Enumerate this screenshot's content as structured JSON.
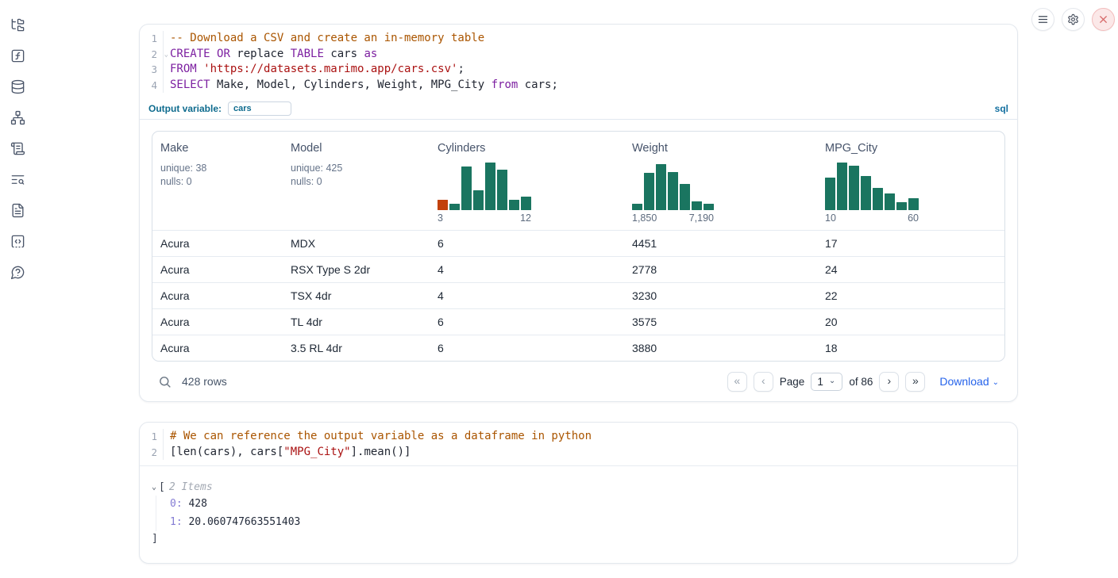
{
  "sidebar": {
    "icons": [
      {
        "name": "file-tree-icon"
      },
      {
        "name": "function-icon"
      },
      {
        "name": "database-icon"
      },
      {
        "name": "dependency-graph-icon"
      },
      {
        "name": "logs-icon"
      },
      {
        "name": "list-search-icon"
      },
      {
        "name": "documentation-icon"
      },
      {
        "name": "snippets-icon"
      },
      {
        "name": "help-icon"
      }
    ]
  },
  "topbar": {
    "buttons": [
      "menu-icon",
      "gear-icon",
      "close-icon"
    ]
  },
  "sql_cell": {
    "lines": [
      {
        "num": "1",
        "fold": false,
        "tokens": [
          {
            "t": "com",
            "v": "-- Download a CSV and create an in-memory table"
          }
        ]
      },
      {
        "num": "2",
        "fold": true,
        "tokens": [
          {
            "t": "kw",
            "v": "CREATE"
          },
          {
            "t": "pl",
            "v": " "
          },
          {
            "t": "kw",
            "v": "OR"
          },
          {
            "t": "pl",
            "v": " replace "
          },
          {
            "t": "kw",
            "v": "TABLE"
          },
          {
            "t": "pl",
            "v": " cars "
          },
          {
            "t": "kw",
            "v": "as"
          }
        ]
      },
      {
        "num": "3",
        "fold": false,
        "tokens": [
          {
            "t": "kw",
            "v": "FROM"
          },
          {
            "t": "pl",
            "v": " "
          },
          {
            "t": "str",
            "v": "'https://datasets.marimo.app/cars.csv'"
          },
          {
            "t": "pl",
            "v": ";"
          }
        ]
      },
      {
        "num": "4",
        "fold": false,
        "tokens": [
          {
            "t": "kw",
            "v": "SELECT"
          },
          {
            "t": "pl",
            "v": " Make, Model, Cylinders, Weight, MPG_City "
          },
          {
            "t": "kw",
            "v": "from"
          },
          {
            "t": "pl",
            "v": " cars;"
          }
        ]
      }
    ],
    "output_variable_label": "Output variable:",
    "output_variable_value": "cars",
    "language_badge": "sql",
    "colors": {
      "histogram_green": "#1a7560",
      "histogram_orange": "#c2410c"
    },
    "table": {
      "columns": [
        {
          "name": "Make",
          "stats": [
            "unique: 38",
            "nulls: 0"
          ]
        },
        {
          "name": "Model",
          "stats": [
            "unique: 425",
            "nulls: 0"
          ]
        },
        {
          "name": "Cylinders",
          "histogram": {
            "heights": [
              0.22,
              0.13,
              0.92,
              0.42,
              1,
              0.85,
              0.22,
              0.28
            ],
            "first_bar_orange": true,
            "labels": [
              "3",
              "12"
            ]
          }
        },
        {
          "name": "Weight",
          "histogram": {
            "heights": [
              0.13,
              0.78,
              0.97,
              0.8,
              0.55,
              0.18,
              0.13
            ],
            "first_bar_orange": false,
            "labels": [
              "1,850",
              "7,190"
            ]
          }
        },
        {
          "name": "MPG_City",
          "histogram": {
            "heights": [
              0.68,
              1,
              0.93,
              0.72,
              0.47,
              0.35,
              0.16,
              0.25
            ],
            "first_bar_orange": false,
            "labels": [
              "10",
              "60"
            ]
          }
        }
      ],
      "rows": [
        [
          "Acura",
          "MDX",
          "6",
          "4451",
          "17"
        ],
        [
          "Acura",
          "RSX Type S 2dr",
          "4",
          "2778",
          "24"
        ],
        [
          "Acura",
          "TSX 4dr",
          "4",
          "3230",
          "22"
        ],
        [
          "Acura",
          "TL 4dr",
          "6",
          "3575",
          "20"
        ],
        [
          "Acura",
          "3.5 RL 4dr",
          "6",
          "3880",
          "18"
        ]
      ]
    },
    "footer": {
      "row_count": "428 rows",
      "first": "«",
      "prev": "‹",
      "next": "›",
      "last": "»",
      "page_label": "Page",
      "page_value": "1",
      "of_label": "of 86",
      "download_label": "Download"
    }
  },
  "python_cell": {
    "lines": [
      {
        "num": "1",
        "fold": false,
        "tokens": [
          {
            "t": "com",
            "v": "# We can reference the output variable as a dataframe in python"
          }
        ]
      },
      {
        "num": "2",
        "fold": false,
        "tokens": [
          {
            "t": "pl",
            "v": "[len(cars), cars["
          },
          {
            "t": "str",
            "v": "\"MPG_City\""
          },
          {
            "t": "pl",
            "v": "].mean()]"
          }
        ]
      }
    ],
    "output_tree": {
      "open_bracket": "[",
      "items_label": "2 Items",
      "entries": [
        {
          "key": "0",
          "value": "428"
        },
        {
          "key": "1",
          "value": "20.060747663551403"
        }
      ],
      "close_bracket": "]"
    }
  }
}
